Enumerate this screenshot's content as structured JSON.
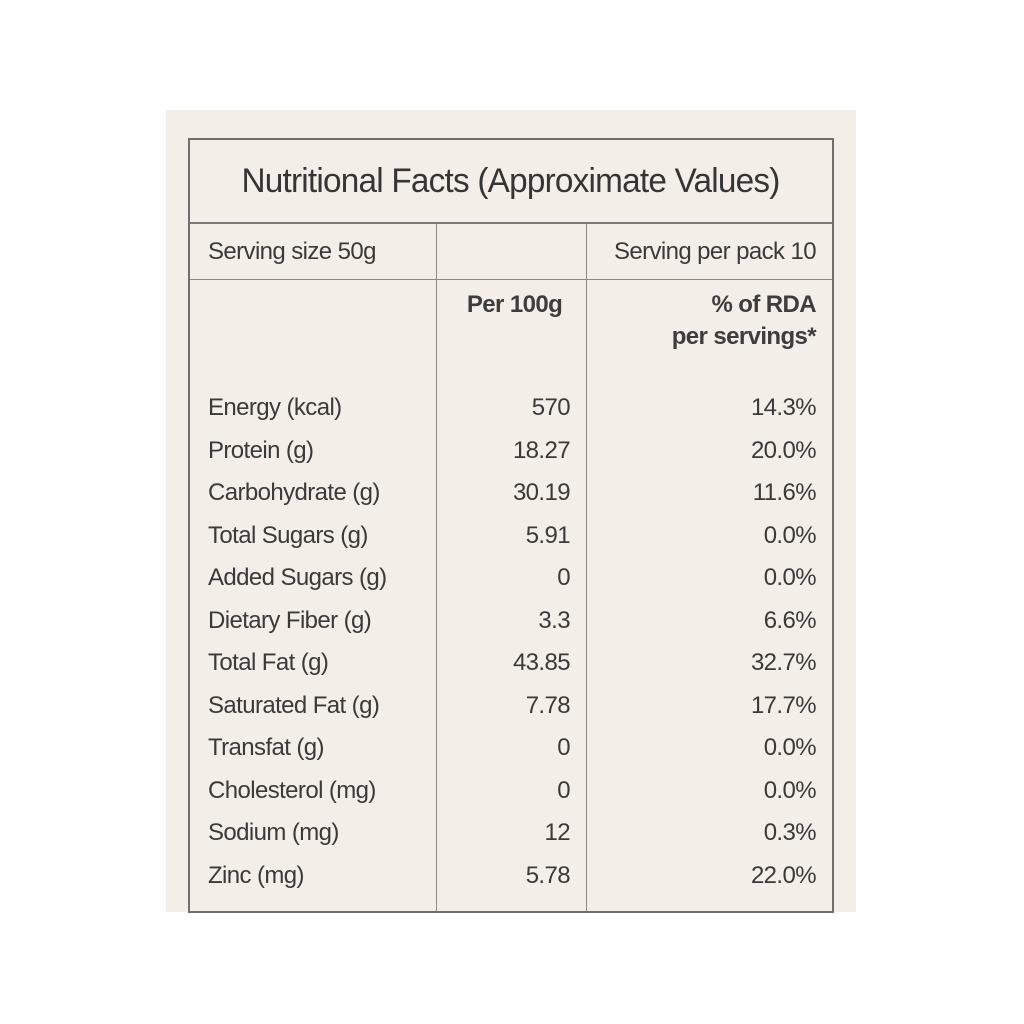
{
  "label": {
    "title": "Nutritional Facts (Approximate Values)",
    "serving_size": "Serving size 50g",
    "serving_per_pack": "Serving per pack 10",
    "column_per_100g": "Per 100g",
    "column_rda_line1": "% of RDA",
    "column_rda_line2": "per servings*",
    "rows": [
      {
        "nutrient": "Energy (kcal)",
        "per_100g": "570",
        "rda": "14.3%"
      },
      {
        "nutrient": "Protein (g)",
        "per_100g": "18.27",
        "rda": "20.0%"
      },
      {
        "nutrient": "Carbohydrate (g)",
        "per_100g": "30.19",
        "rda": "11.6%"
      },
      {
        "nutrient": "Total Sugars (g)",
        "per_100g": "5.91",
        "rda": "0.0%"
      },
      {
        "nutrient": "Added Sugars (g)",
        "per_100g": "0",
        "rda": "0.0%"
      },
      {
        "nutrient": "Dietary Fiber  (g)",
        "per_100g": "3.3",
        "rda": "6.6%"
      },
      {
        "nutrient": "Total Fat (g)",
        "per_100g": "43.85",
        "rda": "32.7%"
      },
      {
        "nutrient": "Saturated Fat (g)",
        "per_100g": "7.78",
        "rda": "17.7%"
      },
      {
        "nutrient": "Transfat (g)",
        "per_100g": "0",
        "rda": "0.0%"
      },
      {
        "nutrient": "Cholesterol (mg)",
        "per_100g": "0",
        "rda": "0.0%"
      },
      {
        "nutrient": "Sodium (mg)",
        "per_100g": "12",
        "rda": "0.3%"
      },
      {
        "nutrient": "Zinc (mg)",
        "per_100g": "5.78",
        "rda": "22.0%"
      }
    ]
  }
}
